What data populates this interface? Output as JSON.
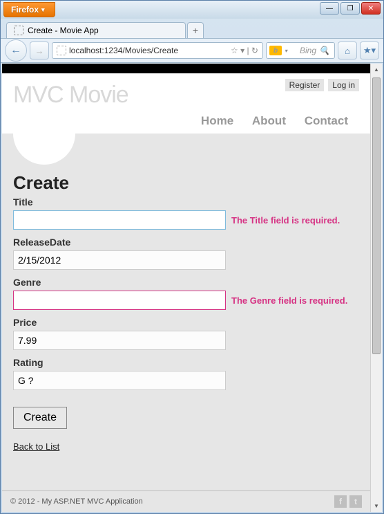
{
  "browser": {
    "name": "Firefox",
    "tab_title": "Create - Movie App",
    "url": "localhost:1234/Movies/Create",
    "search_engine": "Bing"
  },
  "header": {
    "register": "Register",
    "login": "Log in",
    "logo": "MVC Movie",
    "nav": {
      "home": "Home",
      "about": "About",
      "contact": "Contact"
    }
  },
  "page": {
    "title": "Create",
    "fields": {
      "title": {
        "label": "Title",
        "value": "",
        "error": "The Title field is required."
      },
      "releaseDate": {
        "label": "ReleaseDate",
        "value": "2/15/2012"
      },
      "genre": {
        "label": "Genre",
        "value": "",
        "error": "The Genre field is required."
      },
      "price": {
        "label": "Price",
        "value": "7.99"
      },
      "rating": {
        "label": "Rating",
        "value": "G ?"
      }
    },
    "submit": "Create",
    "back_link": "Back to List"
  },
  "footer": {
    "copyright": "© 2012 - My ASP.NET MVC Application"
  },
  "colors": {
    "error": "#d63384",
    "page_bg": "#e6e6e6",
    "logo": "#d8d8d8"
  }
}
